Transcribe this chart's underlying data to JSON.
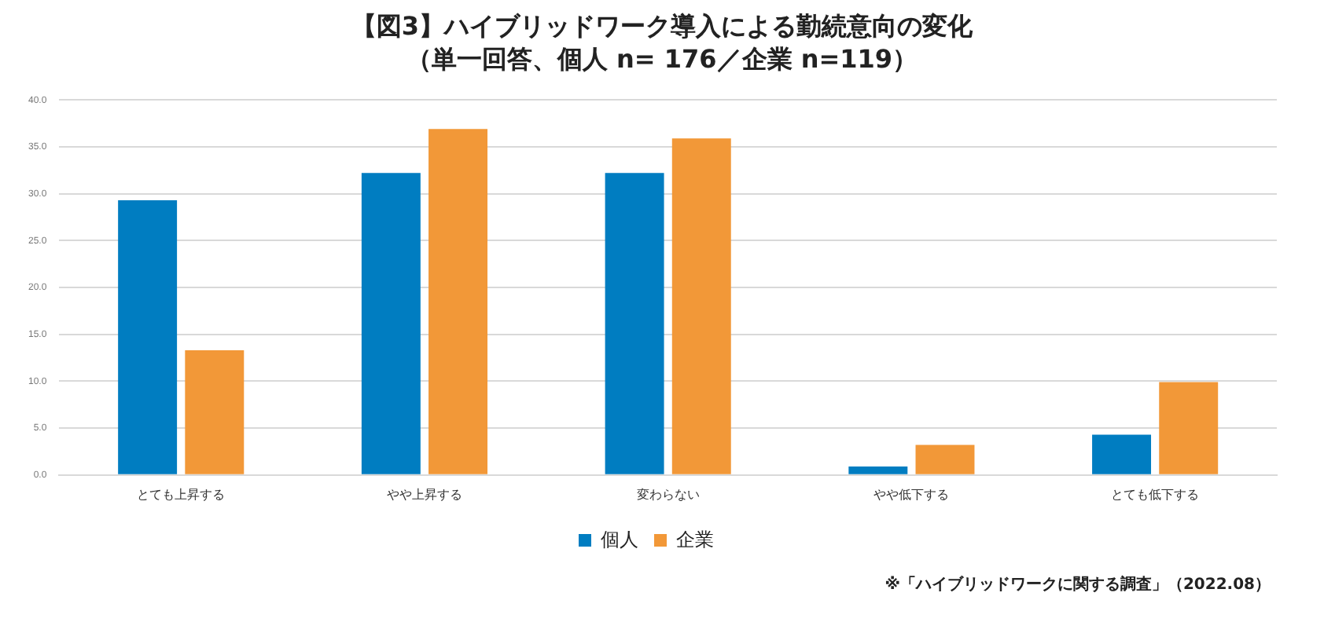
{
  "chart_data": {
    "type": "bar",
    "title": "【図3】ハイブリッドワーク導入による勤続意向の変化",
    "subtitle": "（単一回答、個人 n= 176／企業 n=119）",
    "categories": [
      "とても上昇する",
      "やや上昇する",
      "変わらない",
      "やや低下する",
      "とても低下する"
    ],
    "series": [
      {
        "name": "個人",
        "color": "#007dc1",
        "values": [
          29.3,
          32.2,
          32.2,
          0.9,
          4.3
        ]
      },
      {
        "name": "企業",
        "color": "#f29838",
        "values": [
          13.3,
          36.9,
          35.9,
          3.2,
          9.9
        ]
      }
    ],
    "ylim": [
      0,
      40
    ],
    "yticks": [
      {
        "value": 0,
        "label": "0.0"
      },
      {
        "value": 5,
        "label": "5.0"
      },
      {
        "value": 10,
        "label": "10.0"
      },
      {
        "value": 15,
        "label": "15.0"
      },
      {
        "value": 20,
        "label": "20.0"
      },
      {
        "value": 25,
        "label": "25.0"
      },
      {
        "value": 30,
        "label": "30.0"
      },
      {
        "value": 35,
        "label": "35.0"
      },
      {
        "value": 40,
        "label": "40.0"
      }
    ],
    "grid": "y",
    "legend": "bottom",
    "annotations": [
      "※「ハイブリッドワークに関する調査」（2022.08）"
    ]
  }
}
